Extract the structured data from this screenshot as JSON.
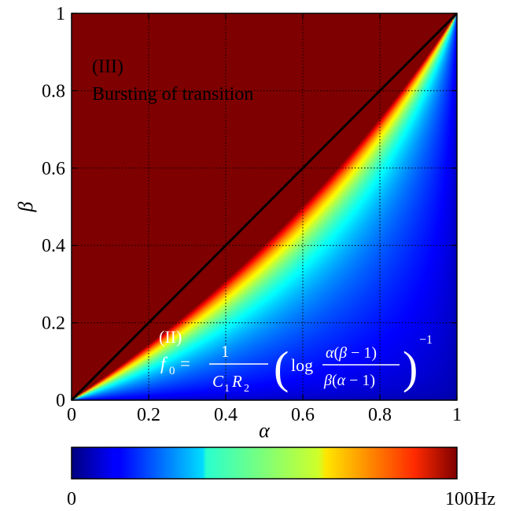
{
  "chart_data": {
    "type": "heatmap",
    "x": {
      "label": "α",
      "range": [
        0,
        1
      ],
      "ticks": [
        "0",
        "0.2",
        "0.4",
        "0.6",
        "0.8",
        "1"
      ]
    },
    "y": {
      "label": "β",
      "range": [
        0,
        1
      ],
      "ticks": [
        "0",
        "0.2",
        "0.4",
        "0.6",
        "0.8",
        "1"
      ]
    },
    "grid": true,
    "colormap": "jet",
    "colorbar": {
      "min_label": "0",
      "max_label": "100Hz",
      "min": 0,
      "max": 100,
      "unit": "Hz"
    },
    "regions": [
      {
        "label": "(III)",
        "description": "Bursting of transition"
      },
      {
        "label": "(II)",
        "formula": "f₀ = 1 / (C₁R₂) · ( log α(β−1) / β(α−1) )⁻¹"
      }
    ],
    "boundary_line": "β = α",
    "contour_samples_hz": [
      {
        "level_hz": 80,
        "points": [
          [
            0.2,
            0.051
          ],
          [
            0.4,
            0.145
          ],
          [
            0.6,
            0.303
          ],
          [
            0.8,
            0.565
          ]
        ]
      },
      {
        "level_hz": 60,
        "points": [
          [
            0.2,
            0.029
          ],
          [
            0.4,
            0.088
          ],
          [
            0.6,
            0.199
          ],
          [
            0.8,
            0.424
          ]
        ]
      },
      {
        "level_hz": 40,
        "points": [
          [
            0.2,
            0.01
          ],
          [
            0.4,
            0.035
          ],
          [
            0.6,
            0.09
          ],
          [
            0.8,
            0.232
          ]
        ]
      }
    ]
  },
  "text": {
    "region3_label": "(III)",
    "region3_desc": "Bursting of transition",
    "region2_label": "(II)"
  },
  "colors": {
    "max": "#7f0000",
    "min": "#00007f",
    "axis": "#000000",
    "grid": "#000000"
  }
}
